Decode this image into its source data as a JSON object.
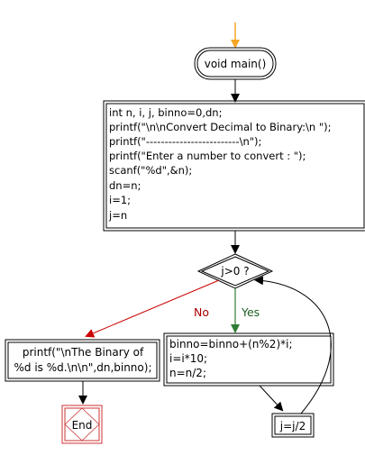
{
  "diagram": {
    "start": {
      "label": "void main()"
    },
    "init_block": {
      "lines": [
        "int n, i, j, binno=0,dn;",
        "printf(\"\\n\\nConvert Decimal to Binary:\\n \");",
        "printf(\"-------------------------\\n\");",
        "printf(\"Enter a number to convert : \");",
        "scanf(\"%d\",&n);",
        "dn=n;",
        "i=1;",
        "j=n"
      ]
    },
    "decision": {
      "label": "j>0 ?"
    },
    "no_branch": {
      "label": "No"
    },
    "yes_branch": {
      "label": "Yes"
    },
    "output_block": {
      "lines": [
        "printf(\"\\nThe Binary of",
        "%d is %d.\\n\\n\",dn,binno);"
      ]
    },
    "loop_block": {
      "lines": [
        "binno=binno+(n%2)*i;",
        "i=i*10;",
        "n=n/2;"
      ]
    },
    "update_block": {
      "label": "j=j/2"
    },
    "end": {
      "label": "End"
    },
    "colors": {
      "entry_arrow": "#f5a623",
      "no_arrow": "#cc0000",
      "no_text": "#aa0000",
      "yes_arrow": "#2e7d32",
      "yes_text": "#1b5e20",
      "end_border": "#cc3333",
      "line": "#000000"
    }
  }
}
